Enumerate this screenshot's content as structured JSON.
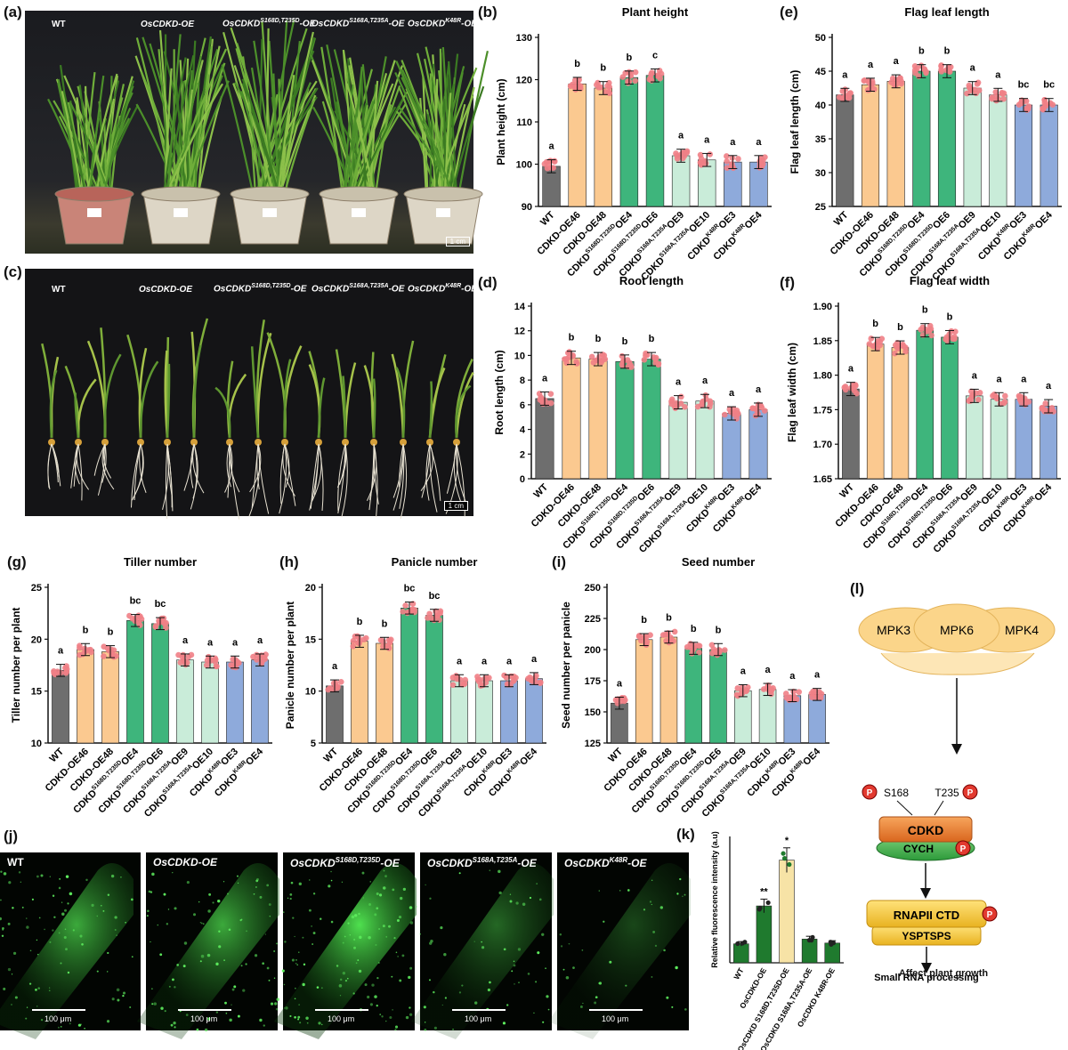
{
  "panel_letters": {
    "a": "(a)",
    "b": "(b)",
    "c": "(c)",
    "d": "(d)",
    "e": "(e)",
    "f": "(f)",
    "g": "(g)",
    "h": "(h)",
    "i": "(i)",
    "j": "(j)",
    "k": "(k)",
    "l": "(l)"
  },
  "photos": {
    "a": {
      "labels": [
        "WT",
        "OsCDKD-OE",
        "OsCDKD",
        "OsCDKD",
        "OsCDKD"
      ],
      "sup": [
        "",
        "",
        "S168D,T235D",
        "S168A,T235A",
        "K48R"
      ],
      "suffix": [
        "",
        "",
        "-OE",
        "-OE",
        "-OE"
      ],
      "scale": "1 cm"
    },
    "c": {
      "labels": [
        "WT",
        "OsCDKD-OE",
        "OsCDKD",
        "OsCDKD",
        "OsCDKD"
      ],
      "sup": [
        "",
        "",
        "S168D,T235D",
        "S168A,T235A",
        "K48R"
      ],
      "suffix": [
        "",
        "",
        "-OE",
        "-OE",
        "-OE"
      ],
      "scale": "1 cm"
    },
    "j": {
      "labels": [
        "WT",
        "OsCDKD-OE",
        "OsCDKD",
        "OsCDKD",
        "OsCDKD"
      ],
      "sup": [
        "",
        "",
        "S168D,T235D",
        "S168A,T235A",
        "K48R"
      ],
      "suffix": [
        "",
        "",
        "-OE",
        "-OE",
        "-OE"
      ],
      "scale": "100 μm"
    }
  },
  "categories": [
    {
      "main": "WT",
      "sup": "",
      "tail": ""
    },
    {
      "main": "CDKD-OE46",
      "sup": "",
      "tail": ""
    },
    {
      "main": "CDKD-OE48",
      "sup": "",
      "tail": ""
    },
    {
      "main": "CDKD",
      "sup": "S168D,T235D",
      "tail": "OE4"
    },
    {
      "main": "CDKD",
      "sup": "S168D,T235D",
      "tail": "OE6"
    },
    {
      "main": "CDKD",
      "sup": "S168A,T235A",
      "tail": "OE9"
    },
    {
      "main": "CDKD",
      "sup": "S168A,T235A",
      "tail": "OE10"
    },
    {
      "main": "CDKD",
      "sup": "K48R",
      "tail": "OE3"
    },
    {
      "main": "CDKD",
      "sup": "K48R",
      "tail": "OE4"
    }
  ],
  "bar_colors": [
    "#6e6e6e",
    "#fbc990",
    "#fbc990",
    "#3eb57c",
    "#3eb57c",
    "#c9ecd9",
    "#c9ecd9",
    "#8eaadb",
    "#8eaadb"
  ],
  "chart_data": [
    {
      "id": "b",
      "type": "bar",
      "title": "Plant height",
      "ylabel": "Plant height (cm)",
      "ylim": [
        90,
        130
      ],
      "yticks": [
        90,
        100,
        110,
        120,
        130
      ],
      "values": [
        99.5,
        119,
        118,
        120.5,
        121
      ],
      "values_rest": [
        102,
        101,
        100.5,
        100.5
      ],
      "letters": [
        "a",
        "b",
        "b",
        "b",
        "c",
        "a",
        "a",
        "a",
        "a"
      ]
    },
    {
      "id": "e",
      "type": "bar",
      "title": "Flag leaf length",
      "ylabel": "Flag leaf length (cm)",
      "ylim": [
        25,
        50
      ],
      "yticks": [
        25,
        30,
        35,
        40,
        45,
        50
      ],
      "values": [
        41.5,
        43,
        43.5,
        45,
        45,
        42.5,
        41.5,
        40,
        40
      ],
      "letters": [
        "a",
        "a",
        "a",
        "b",
        "b",
        "a",
        "a",
        "bc",
        "bc"
      ]
    },
    {
      "id": "d",
      "type": "bar",
      "title": "Root length",
      "ylabel": "Root length (cm)",
      "ylim": [
        0,
        14
      ],
      "yticks": [
        0,
        2,
        4,
        6,
        8,
        10,
        12,
        14
      ],
      "values": [
        6.5,
        9.8,
        9.7,
        9.5,
        9.7,
        6.2,
        6.3,
        5.3,
        5.6
      ],
      "letters": [
        "a",
        "b",
        "b",
        "b",
        "b",
        "a",
        "a",
        "a",
        "a"
      ]
    },
    {
      "id": "f",
      "type": "bar",
      "title": "Flag leaf width",
      "ylabel": "Flag leaf width (cm)",
      "ylim": [
        1.65,
        1.9
      ],
      "yticks": [
        1.65,
        1.7,
        1.75,
        1.8,
        1.85,
        1.9
      ],
      "values": [
        1.78,
        1.845,
        1.84,
        1.865,
        1.855,
        1.77,
        1.765,
        1.765,
        1.755
      ],
      "letters": [
        "a",
        "b",
        "b",
        "b",
        "b",
        "a",
        "a",
        "a",
        "a"
      ]
    },
    {
      "id": "g",
      "type": "bar",
      "title": "Tiller number",
      "ylabel": "Tiller number per plant",
      "ylim": [
        10,
        25
      ],
      "yticks": [
        10,
        15,
        20,
        25
      ],
      "values": [
        17,
        19,
        18.8,
        21.8,
        21.5,
        18,
        17.8,
        17.8,
        18
      ],
      "letters": [
        "a",
        "b",
        "b",
        "bc",
        "bc",
        "a",
        "a",
        "a",
        "a"
      ]
    },
    {
      "id": "h",
      "type": "bar",
      "title": "Panicle number",
      "ylabel": "Panicle number per plant",
      "ylim": [
        5,
        20
      ],
      "yticks": [
        5,
        10,
        15,
        20
      ],
      "values": [
        10.5,
        14.8,
        14.6,
        18,
        17.3,
        11,
        11,
        11,
        11.2
      ],
      "letters": [
        "a",
        "b",
        "b",
        "bc",
        "bc",
        "a",
        "a",
        "a",
        "a"
      ]
    },
    {
      "id": "i",
      "type": "bar",
      "title": "Seed number",
      "ylabel": "Seed number per panicle",
      "ylim": [
        125,
        250
      ],
      "yticks": [
        125,
        150,
        175,
        200,
        225,
        250
      ],
      "values": [
        157,
        208,
        210,
        201,
        200,
        167,
        168,
        163,
        164
      ],
      "letters": [
        "a",
        "b",
        "b",
        "b",
        "b",
        "a",
        "a",
        "a",
        "a"
      ]
    },
    {
      "id": "k",
      "type": "bar",
      "title": "",
      "ylabel": "Relative fluorescence intensity (a.u)",
      "ylim": [
        0,
        800
      ],
      "categories": [
        "WT",
        "OsCDKD-OE",
        "OsCDKD S168D,T235D-OE",
        "OsCDKD S168A,T235A-OE",
        "OsCDKD K48R-OE"
      ],
      "values": [
        120,
        360,
        650,
        150,
        125
      ],
      "stars": [
        "",
        "**",
        "*",
        "",
        ""
      ]
    }
  ],
  "diagram": {
    "kinases": [
      "MPK3",
      "MPK6",
      "MPK4"
    ],
    "p_left": "S168",
    "p_right": "T235",
    "p": "P",
    "cdkd": "CDKD",
    "cych": "CYCH",
    "rnapii": "RNAPII CTD",
    "motif": "YSPTSPS",
    "out1": "Small RNA processing",
    "out2": "Affect plant growth"
  }
}
